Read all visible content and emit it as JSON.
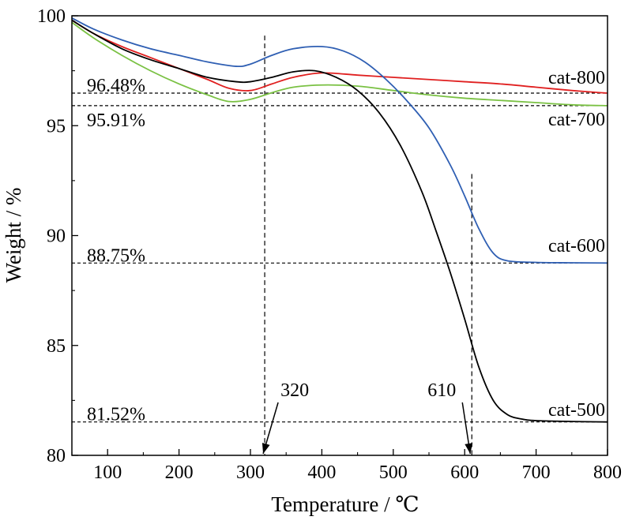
{
  "chart_data": {
    "type": "line",
    "title": "",
    "xlabel": "Temperature / ℃",
    "ylabel": "Weight / %",
    "xlim": [
      50,
      800
    ],
    "ylim": [
      80,
      100
    ],
    "xticks": [
      100,
      200,
      300,
      400,
      500,
      600,
      700,
      800
    ],
    "yticks": [
      80,
      85,
      90,
      95,
      100
    ],
    "grid": false,
    "legend": "curve-end labels on right",
    "series": [
      {
        "name": "cat-800",
        "color": "#e02020",
        "x": [
          50,
          80,
          120,
          160,
          200,
          240,
          270,
          300,
          330,
          360,
          400,
          450,
          500,
          550,
          600,
          650,
          700,
          750,
          800
        ],
        "y": [
          99.8,
          99.2,
          98.6,
          98.1,
          97.6,
          97.1,
          96.7,
          96.6,
          96.9,
          97.2,
          97.4,
          97.3,
          97.2,
          97.1,
          97.0,
          96.9,
          96.75,
          96.6,
          96.48
        ]
      },
      {
        "name": "cat-700",
        "color": "#7ac143",
        "x": [
          50,
          80,
          120,
          160,
          200,
          240,
          270,
          300,
          330,
          360,
          400,
          450,
          500,
          550,
          600,
          650,
          700,
          750,
          800
        ],
        "y": [
          99.7,
          99.0,
          98.2,
          97.5,
          96.9,
          96.4,
          96.1,
          96.2,
          96.5,
          96.75,
          96.85,
          96.8,
          96.6,
          96.4,
          96.25,
          96.15,
          96.05,
          95.95,
          95.91
        ]
      },
      {
        "name": "cat-600",
        "color": "#2f5fb3",
        "x": [
          50,
          80,
          120,
          160,
          200,
          240,
          280,
          300,
          330,
          360,
          400,
          430,
          460,
          490,
          520,
          550,
          580,
          600,
          620,
          640,
          660,
          700,
          750,
          800
        ],
        "y": [
          99.9,
          99.4,
          98.9,
          98.5,
          98.2,
          97.9,
          97.7,
          97.8,
          98.2,
          98.5,
          98.6,
          98.4,
          97.9,
          97.1,
          96.1,
          94.9,
          93.2,
          91.8,
          90.3,
          89.2,
          88.85,
          88.78,
          88.76,
          88.75
        ]
      },
      {
        "name": "cat-500",
        "color": "#000000",
        "x": [
          50,
          80,
          120,
          160,
          200,
          240,
          280,
          300,
          330,
          360,
          390,
          420,
          450,
          480,
          510,
          540,
          560,
          580,
          600,
          620,
          640,
          660,
          680,
          700,
          750,
          800
        ],
        "y": [
          99.8,
          99.2,
          98.5,
          98.0,
          97.6,
          97.2,
          97.0,
          97.0,
          97.2,
          97.45,
          97.5,
          97.2,
          96.6,
          95.6,
          94.1,
          92.0,
          90.2,
          88.3,
          86.2,
          84.0,
          82.5,
          81.85,
          81.65,
          81.58,
          81.54,
          81.52
        ]
      }
    ],
    "hlines": [
      {
        "y": 96.48,
        "label": "96.48%"
      },
      {
        "y": 95.91,
        "label": "95.91%"
      },
      {
        "y": 88.75,
        "label": "88.75%"
      },
      {
        "y": 81.52,
        "label": "81.52%"
      }
    ],
    "vlines": [
      {
        "x": 320,
        "label": "320",
        "ytop": 99.1
      },
      {
        "x": 610,
        "label": "610",
        "ytop": 92.8
      }
    ]
  }
}
